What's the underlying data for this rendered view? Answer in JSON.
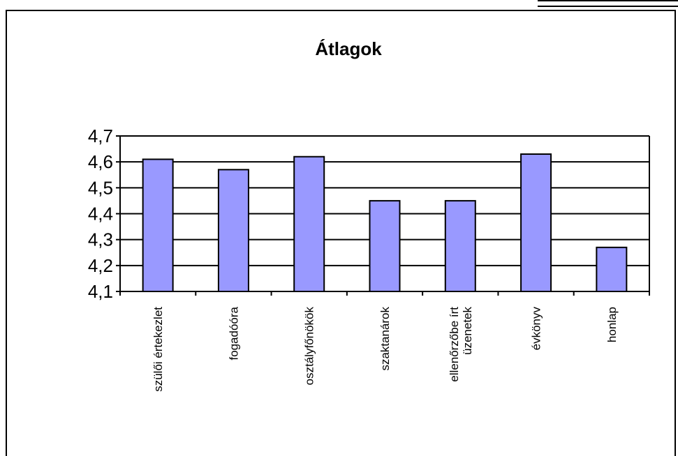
{
  "chart_data": {
    "type": "bar",
    "title": "Átlagok",
    "xlabel": "",
    "ylabel": "",
    "categories": [
      [
        "szülői értekezlet"
      ],
      [
        "fogadóóra"
      ],
      [
        "osztályfőnökök"
      ],
      [
        "szaktanárok"
      ],
      [
        "ellenőrzőbe írt",
        "üzenetek"
      ],
      [
        "évkönyv"
      ],
      [
        "honlap"
      ]
    ],
    "values": [
      4.61,
      4.57,
      4.62,
      4.45,
      4.45,
      4.63,
      4.27
    ],
    "ylim": [
      4.1,
      4.7
    ],
    "yticks": [
      "4,1",
      "4,2",
      "4,3",
      "4,4",
      "4,5",
      "4,6",
      "4,7"
    ],
    "grid": true,
    "legend": "none",
    "bar_color": "#9999ff",
    "bar_edge_color": "#000000"
  }
}
